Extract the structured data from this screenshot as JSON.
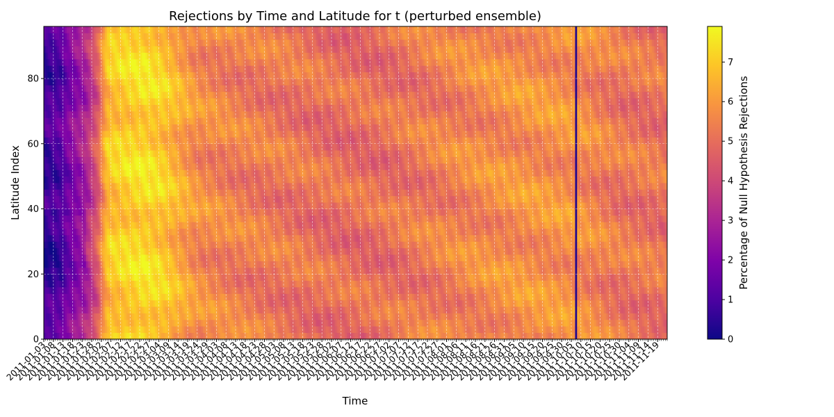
{
  "chart_data": {
    "type": "heatmap",
    "title": "Rejections by Time and Latitude for t (perturbed ensemble)",
    "xlabel": "Time",
    "ylabel": "Latitude Index",
    "ylim": [
      0,
      96
    ],
    "y_ticks": [
      0,
      20,
      40,
      60,
      80
    ],
    "x_tick_labels": [
      "2011-01-03",
      "2011-01-08",
      "2011-01-13",
      "2011-01-18",
      "2011-01-23",
      "2011-01-28",
      "2011-02-02",
      "2011-02-07",
      "2011-02-12",
      "2011-02-17",
      "2011-02-22",
      "2011-02-27",
      "2011-03-04",
      "2011-03-09",
      "2011-03-14",
      "2011-03-19",
      "2011-03-24",
      "2011-03-29",
      "2011-04-03",
      "2011-04-08",
      "2011-04-13",
      "2011-04-18",
      "2011-04-23",
      "2011-04-28",
      "2011-05-03",
      "2011-05-08",
      "2011-05-13",
      "2011-05-18",
      "2011-05-23",
      "2011-05-28",
      "2011-06-02",
      "2011-06-07",
      "2011-06-12",
      "2011-06-17",
      "2011-06-22",
      "2011-06-27",
      "2011-07-02",
      "2011-07-07",
      "2011-07-12",
      "2011-07-17",
      "2011-07-22",
      "2011-07-27",
      "2011-08-01",
      "2011-08-06",
      "2011-08-11",
      "2011-08-16",
      "2011-08-21",
      "2011-08-26",
      "2011-08-31",
      "2011-09-05",
      "2011-09-10",
      "2011-09-15",
      "2011-09-20",
      "2011-09-25",
      "2011-09-30",
      "2011-10-05",
      "2011-10-10",
      "2011-10-15",
      "2011-10-20",
      "2011-10-25",
      "2011-10-30",
      "2011-11-04",
      "2011-11-09",
      "2011-11-14",
      "2011-11-19"
    ],
    "x_extent_days": 325,
    "anomaly_date": "2011-10-07",
    "anomaly_value": 0.3,
    "colormap": "plasma",
    "colorbar": {
      "label": "Percentage of Null Hypothesis Rejections",
      "range": [
        0,
        7.9
      ],
      "ticks": [
        0,
        1,
        2,
        3,
        4,
        5,
        6,
        7
      ]
    },
    "grid": true,
    "time_profile": [
      {
        "day": 0,
        "value": 0.8
      },
      {
        "day": 9,
        "value": 1.2
      },
      {
        "day": 12,
        "value": 1.8
      },
      {
        "day": 17,
        "value": 2.4
      },
      {
        "day": 22,
        "value": 3.0
      },
      {
        "day": 28,
        "value": 4.5
      },
      {
        "day": 33,
        "value": 6.8
      },
      {
        "day": 42,
        "value": 7.1
      },
      {
        "day": 52,
        "value": 7.3
      },
      {
        "day": 62,
        "value": 7.0
      },
      {
        "day": 70,
        "value": 6.4
      },
      {
        "day": 80,
        "value": 5.7
      },
      {
        "day": 100,
        "value": 5.4
      },
      {
        "day": 125,
        "value": 5.2
      },
      {
        "day": 150,
        "value": 5.0
      },
      {
        "day": 175,
        "value": 5.0
      },
      {
        "day": 200,
        "value": 5.3
      },
      {
        "day": 225,
        "value": 5.6
      },
      {
        "day": 250,
        "value": 5.8
      },
      {
        "day": 275,
        "value": 5.8
      },
      {
        "day": 300,
        "value": 5.2
      },
      {
        "day": 325,
        "value": 5.1
      }
    ]
  }
}
